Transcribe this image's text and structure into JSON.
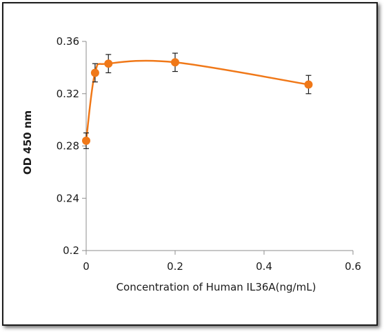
{
  "chart_data": {
    "type": "line",
    "xlabel": "Concentration of Human IL36A(ng/mL)",
    "ylabel": "OD 450 nm",
    "xlim": [
      0,
      0.6
    ],
    "ylim": [
      0.2,
      0.36
    ],
    "xticks": [
      0,
      0.2,
      0.4,
      0.6
    ],
    "yticks": [
      0.2,
      0.24,
      0.28,
      0.32,
      0.36
    ],
    "xtick_labels": [
      "0",
      "0.2",
      "0.4",
      "0.6"
    ],
    "ytick_labels": [
      "0.2",
      "0.24",
      "0.28",
      "0.32",
      "0.36"
    ],
    "grid": false,
    "smooth": true,
    "series": [
      {
        "x": [
          0,
          0.02,
          0.05,
          0.2,
          0.5
        ],
        "y": [
          0.284,
          0.336,
          0.343,
          0.344,
          0.327
        ],
        "error": [
          0.006,
          0.007,
          0.007,
          0.007,
          0.007
        ],
        "color": "#f07818"
      }
    ]
  }
}
